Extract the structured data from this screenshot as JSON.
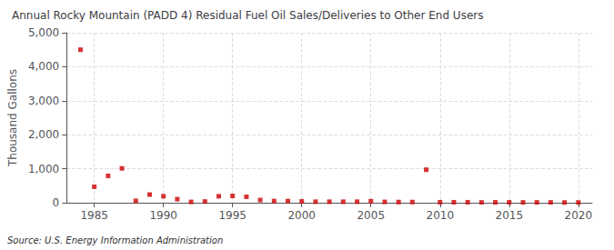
{
  "chart_data": {
    "type": "scatter",
    "title": "Annual Rocky Mountain (PADD 4) Residual Fuel Oil Sales/Deliveries to Other End Users",
    "ylabel": "Thousand Gallons",
    "annotation": "Source: U.S. Energy Information Administration",
    "x": [
      1984,
      1985,
      1986,
      1987,
      1988,
      1989,
      1990,
      1991,
      1992,
      1993,
      1994,
      1995,
      1996,
      1997,
      1998,
      1999,
      2000,
      2001,
      2002,
      2003,
      2004,
      2005,
      2006,
      2007,
      2008,
      2009,
      2010,
      2011,
      2012,
      2013,
      2014,
      2015,
      2016,
      2017,
      2018,
      2019,
      2020
    ],
    "values": [
      4500,
      470,
      790,
      1010,
      55,
      240,
      190,
      105,
      25,
      35,
      190,
      200,
      175,
      80,
      50,
      50,
      40,
      30,
      30,
      30,
      30,
      45,
      25,
      20,
      20,
      970,
      15,
      15,
      15,
      10,
      12,
      12,
      10,
      10,
      10,
      8,
      8
    ],
    "color": "#cc0000",
    "marker": "square",
    "xlim": [
      1983,
      2021
    ],
    "xticks": [
      1985,
      1990,
      1995,
      2000,
      2005,
      2010,
      2015,
      2020
    ],
    "ylim": [
      0,
      5000
    ],
    "yticks": [
      0,
      {
        "value": 1000,
        "label": "1,000"
      },
      {
        "value": 2000,
        "label": "2,000"
      },
      {
        "value": 3000,
        "label": "3,000"
      },
      {
        "value": 4000,
        "label": "4,000"
      },
      {
        "value": 5000,
        "label": "5,000"
      }
    ],
    "grid": true
  }
}
